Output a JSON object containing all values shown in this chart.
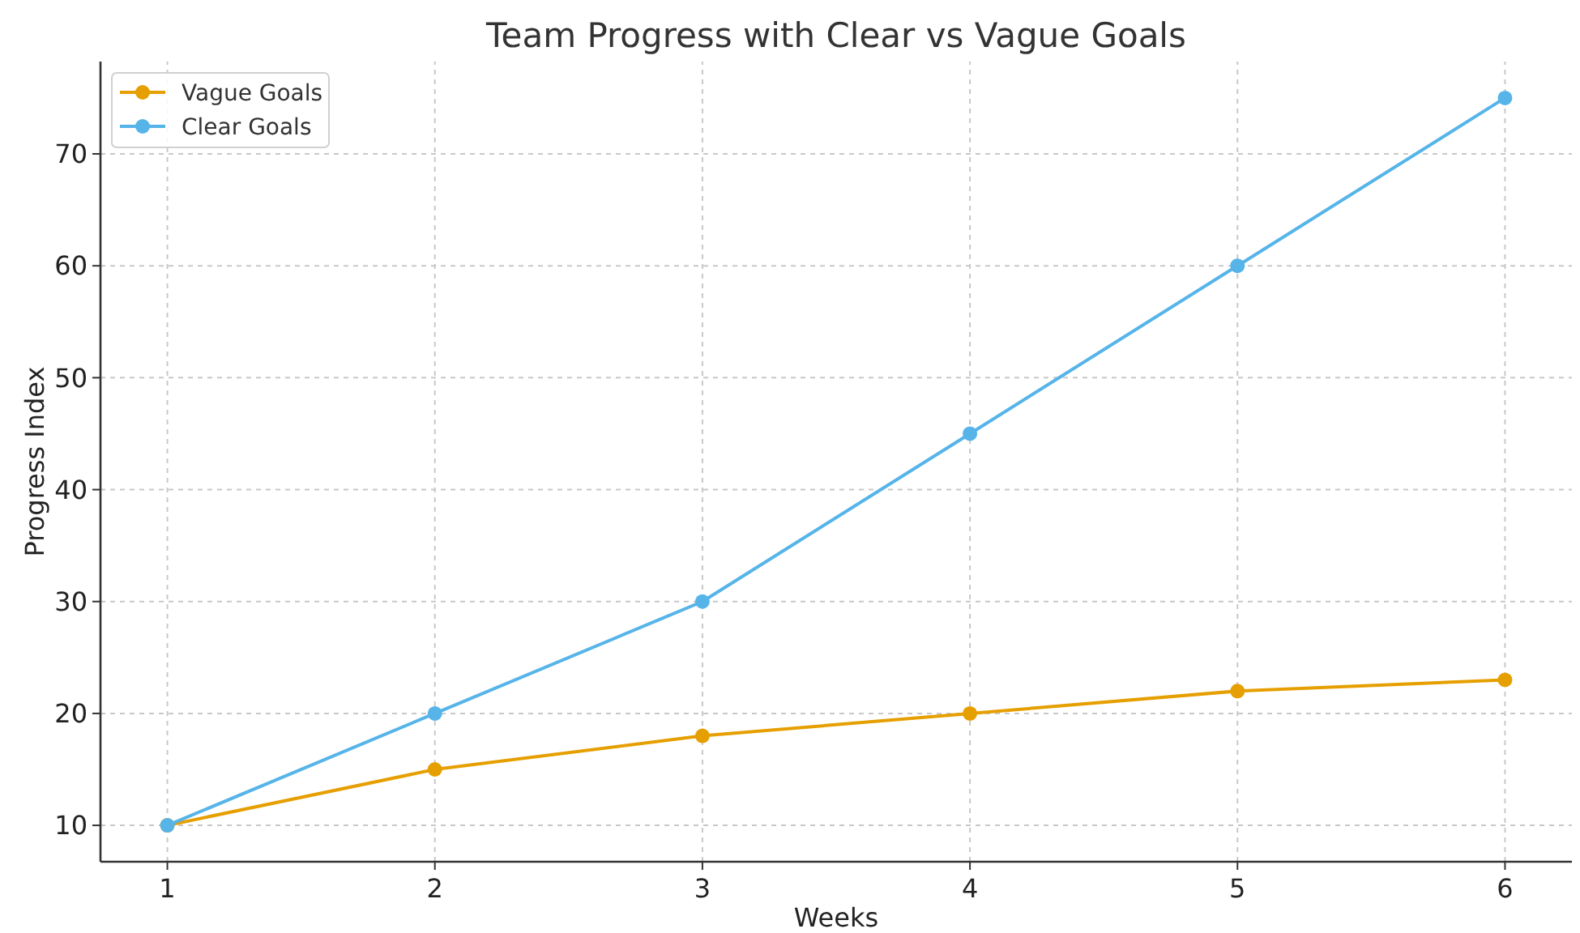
{
  "chart_data": {
    "type": "line",
    "title": "Team Progress with Clear vs Vague Goals",
    "xlabel": "Weeks",
    "ylabel": "Progress Index",
    "x": [
      1,
      2,
      3,
      4,
      5,
      6
    ],
    "series": [
      {
        "name": "Vague Goals",
        "color": "#e69f00",
        "values": [
          10,
          15,
          18,
          20,
          22,
          23
        ]
      },
      {
        "name": "Clear Goals",
        "color": "#56b4e9",
        "values": [
          10,
          20,
          30,
          45,
          60,
          75
        ]
      }
    ],
    "xlim": [
      0.75,
      6.25
    ],
    "xticks": [
      1,
      2,
      3,
      4,
      5,
      6
    ],
    "ylim": [
      6.75,
      78.25
    ],
    "yticks": [
      10,
      20,
      30,
      40,
      50,
      60,
      70
    ],
    "grid": true,
    "legend": "top left",
    "marker": "circle",
    "line_style": "solid"
  }
}
